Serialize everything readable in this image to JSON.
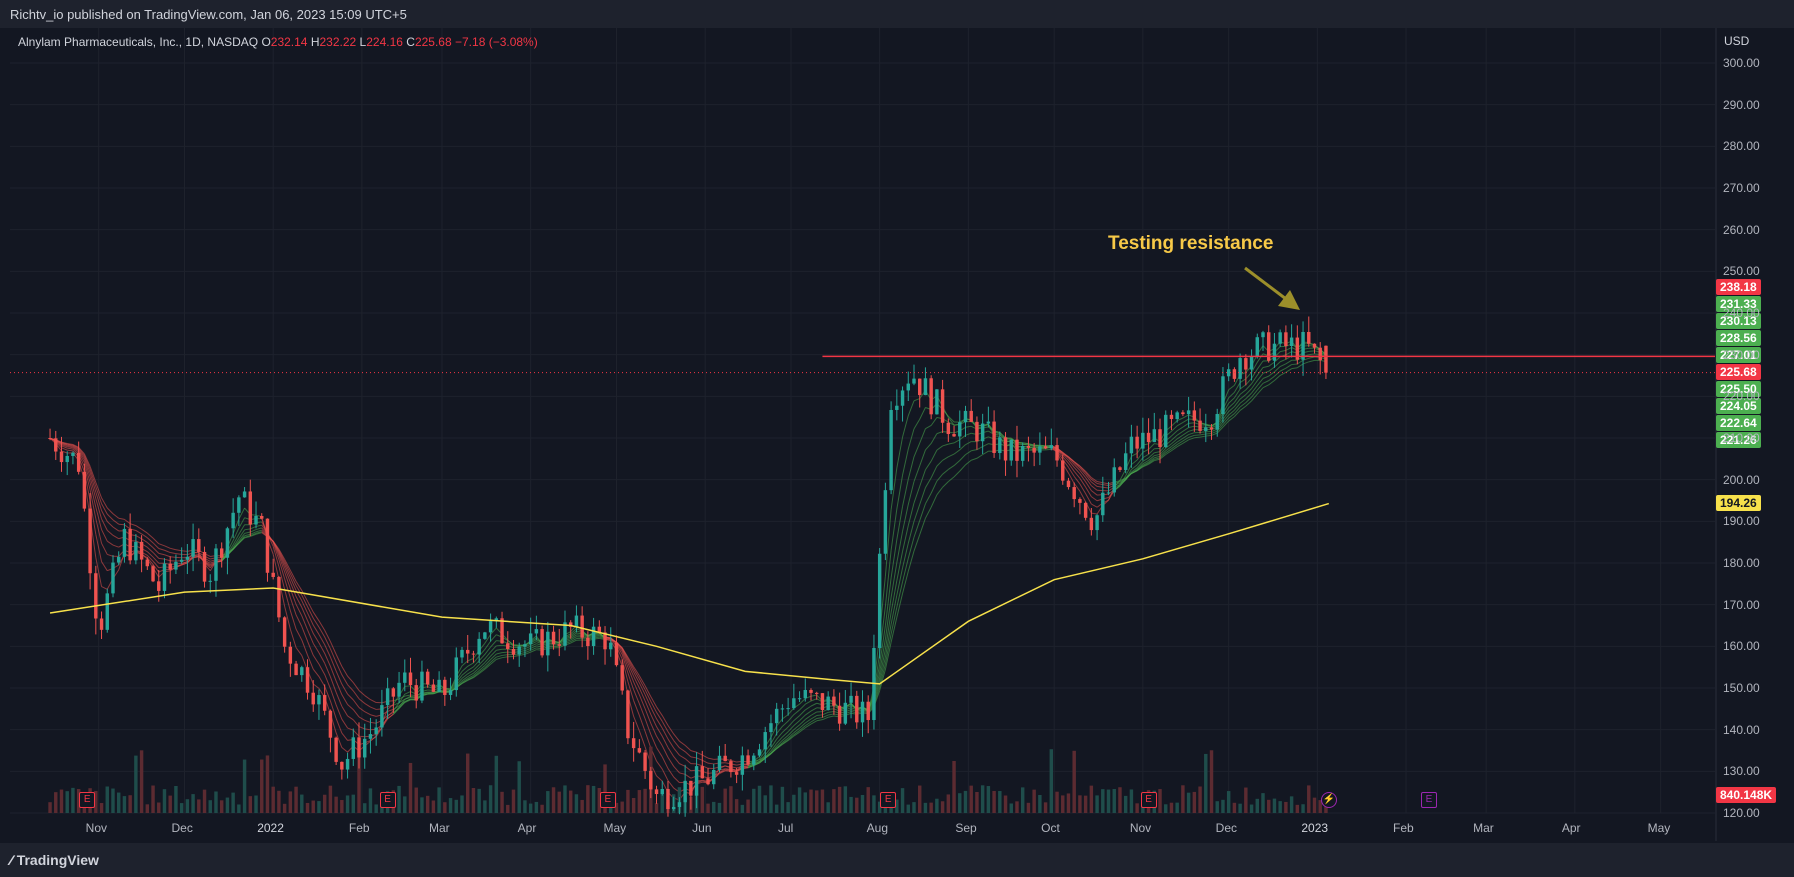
{
  "header": {
    "publisher_text": "Richtv_io published on TradingView.com, Jan 06, 2023 15:09 UTC+5"
  },
  "symbol": {
    "name": "Alnylam Pharmaceuticals, Inc., 1D, NASDAQ",
    "o_label": "O",
    "o_value": "232.14",
    "h_label": "H",
    "h_value": "232.22",
    "l_label": "L",
    "l_value": "224.16",
    "c_label": "C",
    "c_value": "225.68",
    "change": "−7.18 (−3.08%)"
  },
  "annotation": {
    "text": "Testing resistance"
  },
  "footer": {
    "brand": "TradingView"
  },
  "colors": {
    "background": "#131722",
    "grid": "#1e222d",
    "up_candle": "#26a69a",
    "down_candle": "#ef5350",
    "resistance": "#f23645",
    "sma200": "#f7e14b",
    "ribbon_up": "#4caf50",
    "ribbon_down": "#ef5350",
    "annotation": "#f7c948",
    "arrow": "#9c8f2a",
    "earnings": "#f23645",
    "dividend": "#9c27b0"
  },
  "chart_data": {
    "type": "candlestick",
    "price_axis_label": "USD",
    "price_ticks": [
      "300.00",
      "290.00",
      "280.00",
      "270.00",
      "260.00",
      "250.00",
      "240.00",
      "230.00",
      "220.00",
      "210.00",
      "200.00",
      "190.00",
      "180.00",
      "170.00",
      "160.00",
      "150.00",
      "140.00",
      "130.00",
      "120.00"
    ],
    "ylim": [
      120,
      300
    ],
    "time_ticks": [
      "Nov",
      "Dec",
      "2022",
      "Feb",
      "Mar",
      "Apr",
      "May",
      "Jun",
      "Jul",
      "Aug",
      "Sep",
      "Oct",
      "Nov",
      "Dec",
      "2023",
      "Feb",
      "Mar",
      "Apr",
      "May"
    ],
    "resistance_level": 229.6,
    "last_close": 225.68,
    "price_badges": [
      {
        "value": "238.18",
        "bg": "#f23645",
        "fg": "#ffffff"
      },
      {
        "value": "231.33",
        "bg": "#4caf50",
        "fg": "#ffffff"
      },
      {
        "value": "230.13",
        "bg": "#4caf50",
        "fg": "#ffffff"
      },
      {
        "value": "228.56",
        "bg": "#4caf50",
        "fg": "#ffffff"
      },
      {
        "value": "227.01",
        "bg": "#4caf50",
        "fg": "#ffffff"
      },
      {
        "value": "225.68",
        "bg": "#f23645",
        "fg": "#ffffff"
      },
      {
        "value": "225.50",
        "bg": "#4caf50",
        "fg": "#ffffff"
      },
      {
        "value": "224.05",
        "bg": "#4caf50",
        "fg": "#ffffff"
      },
      {
        "value": "222.64",
        "bg": "#4caf50",
        "fg": "#ffffff"
      },
      {
        "value": "221.26",
        "bg": "#4caf50",
        "fg": "#ffffff"
      },
      {
        "value": "194.26",
        "bg": "#f7e14b",
        "fg": "#131722"
      },
      {
        "value": "840.148K",
        "bg": "#f23645",
        "fg": "#ffffff"
      }
    ],
    "close_series": [
      {
        "date": "2021-10-15",
        "close": 210
      },
      {
        "date": "2021-10-25",
        "close": 204
      },
      {
        "date": "2021-11-01",
        "close": 164
      },
      {
        "date": "2021-11-10",
        "close": 186
      },
      {
        "date": "2021-11-22",
        "close": 174
      },
      {
        "date": "2021-12-01",
        "close": 184
      },
      {
        "date": "2021-12-10",
        "close": 178
      },
      {
        "date": "2021-12-20",
        "close": 196
      },
      {
        "date": "2021-12-28",
        "close": 188
      },
      {
        "date": "2022-01-05",
        "close": 160
      },
      {
        "date": "2022-01-15",
        "close": 150
      },
      {
        "date": "2022-01-25",
        "close": 132
      },
      {
        "date": "2022-02-05",
        "close": 140
      },
      {
        "date": "2022-02-15",
        "close": 152
      },
      {
        "date": "2022-03-01",
        "close": 148
      },
      {
        "date": "2022-03-15",
        "close": 165
      },
      {
        "date": "2022-04-01",
        "close": 160
      },
      {
        "date": "2022-04-15",
        "close": 164
      },
      {
        "date": "2022-04-28",
        "close": 162
      },
      {
        "date": "2022-05-05",
        "close": 140
      },
      {
        "date": "2022-05-15",
        "close": 124
      },
      {
        "date": "2022-06-01",
        "close": 128
      },
      {
        "date": "2022-06-15",
        "close": 134
      },
      {
        "date": "2022-07-01",
        "close": 148
      },
      {
        "date": "2022-07-15",
        "close": 146
      },
      {
        "date": "2022-07-28",
        "close": 143
      },
      {
        "date": "2022-08-05",
        "close": 220
      },
      {
        "date": "2022-08-12",
        "close": 226
      },
      {
        "date": "2022-08-25",
        "close": 214
      },
      {
        "date": "2022-09-05",
        "close": 212
      },
      {
        "date": "2022-09-15",
        "close": 206
      },
      {
        "date": "2022-10-01",
        "close": 206
      },
      {
        "date": "2022-10-15",
        "close": 190
      },
      {
        "date": "2022-10-28",
        "close": 208
      },
      {
        "date": "2022-11-10",
        "close": 212
      },
      {
        "date": "2022-11-25",
        "close": 216
      },
      {
        "date": "2022-12-05",
        "close": 230
      },
      {
        "date": "2022-12-15",
        "close": 232
      },
      {
        "date": "2022-12-28",
        "close": 232
      },
      {
        "date": "2023-01-05",
        "close": 225.68
      }
    ],
    "sma200_series": [
      {
        "date": "2021-10-15",
        "value": 168
      },
      {
        "date": "2021-12-01",
        "value": 173
      },
      {
        "date": "2022-01-01",
        "value": 174
      },
      {
        "date": "2022-03-01",
        "value": 167
      },
      {
        "date": "2022-04-15",
        "value": 165
      },
      {
        "date": "2022-05-15",
        "value": 160
      },
      {
        "date": "2022-06-15",
        "value": 154
      },
      {
        "date": "2022-07-15",
        "value": 152
      },
      {
        "date": "2022-08-01",
        "value": 151
      },
      {
        "date": "2022-09-01",
        "value": 166
      },
      {
        "date": "2022-10-01",
        "value": 176
      },
      {
        "date": "2022-11-01",
        "value": 181
      },
      {
        "date": "2022-12-01",
        "value": 187
      },
      {
        "date": "2023-01-05",
        "value": 194.26
      }
    ],
    "events": [
      {
        "type": "earnings",
        "label": "E",
        "date": "2021-10-28"
      },
      {
        "type": "earnings",
        "label": "E",
        "date": "2022-02-10"
      },
      {
        "type": "earnings",
        "label": "E",
        "date": "2022-04-28"
      },
      {
        "type": "earnings",
        "label": "E",
        "date": "2022-08-04"
      },
      {
        "type": "earnings",
        "label": "E",
        "date": "2022-11-03"
      },
      {
        "type": "dividend",
        "label": "⚡",
        "date": "2023-01-05"
      },
      {
        "type": "earnings",
        "label": "E",
        "date": "2023-02-09"
      }
    ]
  }
}
